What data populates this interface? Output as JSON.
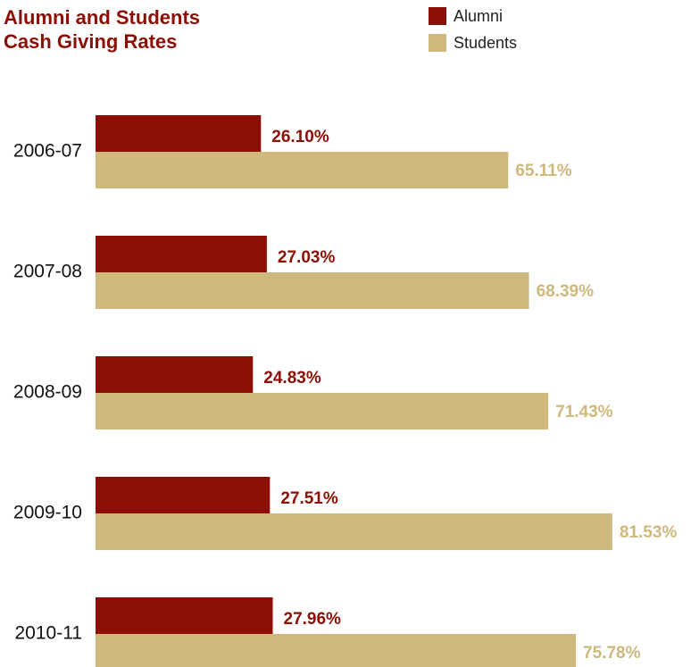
{
  "chart_data": {
    "type": "bar",
    "orientation": "horizontal",
    "title": "Alumni and Students Cash Giving Rates",
    "categories": [
      "2006-07",
      "2007-08",
      "2008-09",
      "2009-10",
      "2010-11"
    ],
    "series": [
      {
        "name": "Alumni",
        "color": "#8b0f04",
        "values": [
          26.1,
          27.03,
          24.83,
          27.51,
          27.96
        ],
        "value_labels": [
          "26.10%",
          "27.03%",
          "24.83%",
          "27.51%",
          "27.96%"
        ]
      },
      {
        "name": "Students",
        "color": "#cfb87c",
        "values": [
          65.11,
          68.39,
          71.43,
          81.53,
          75.78
        ],
        "value_labels": [
          "65.11%",
          "68.39%",
          "71.43%",
          "81.53%",
          "75.78%"
        ]
      }
    ]
  }
}
